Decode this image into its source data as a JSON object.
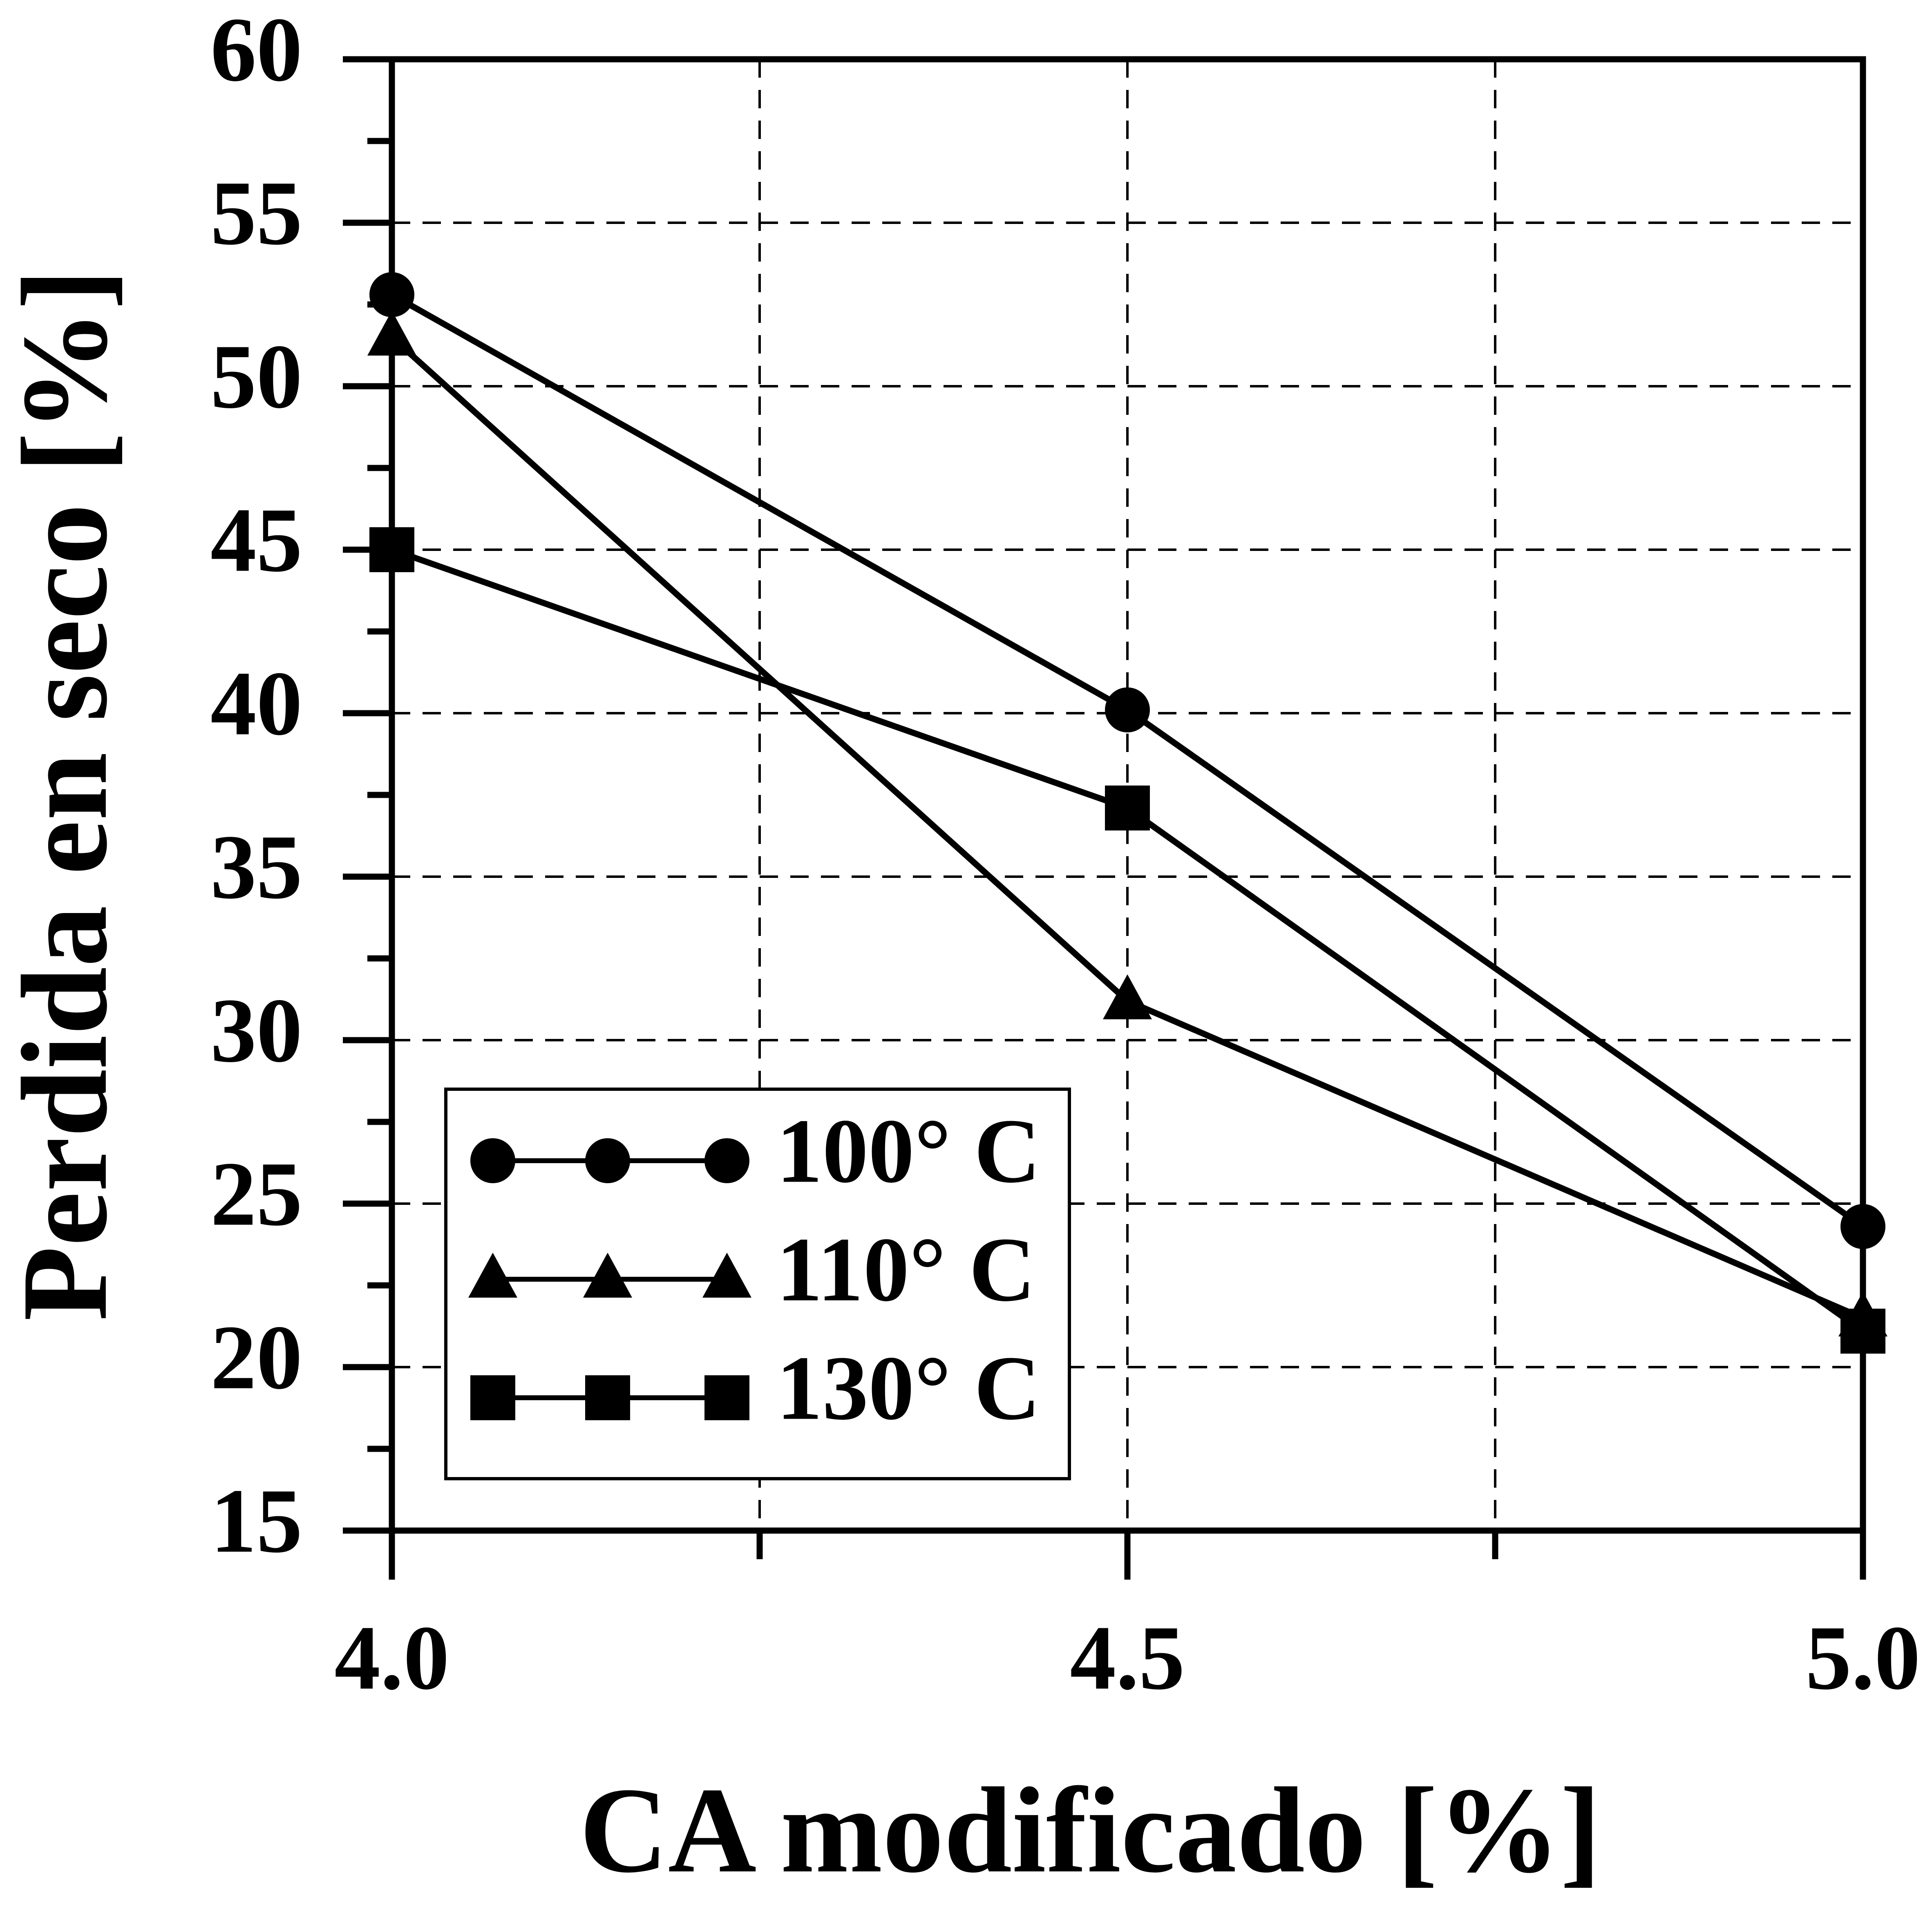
{
  "chart_data": {
    "type": "line",
    "x_label": "CA modificado [%]",
    "y_label": "Perdida en seco [%]",
    "x": [
      4,
      4.5,
      5
    ],
    "series": [
      {
        "name": "100° C",
        "color": "#000000",
        "marker": "circle",
        "values": [
          52.8,
          40.1,
          24.3
        ]
      },
      {
        "name": "110° C",
        "color": "#000000",
        "marker": "triangle",
        "values": [
          51.5,
          31.2,
          21.5
        ]
      },
      {
        "name": "130° C",
        "color": "#000000",
        "marker": "square",
        "values": [
          45,
          37.1,
          21.1
        ]
      }
    ],
    "xlim": [
      4,
      5
    ],
    "ylim": [
      15,
      60
    ],
    "xticks": [
      {
        "value": 4,
        "label": "4.0"
      },
      {
        "value": 4.5,
        "label": "4.5"
      },
      {
        "value": 5,
        "label": "5.0"
      }
    ],
    "xminorticks": [
      4.25,
      4.75
    ],
    "yticks": [
      15,
      20,
      25,
      30,
      35,
      40,
      45,
      50,
      55,
      60
    ],
    "yminorticks": [
      17.5,
      22.5,
      27.5,
      32.5,
      37.5,
      42.5,
      47.5,
      52.5,
      57.5
    ],
    "grid": true,
    "legend": "lower left"
  }
}
